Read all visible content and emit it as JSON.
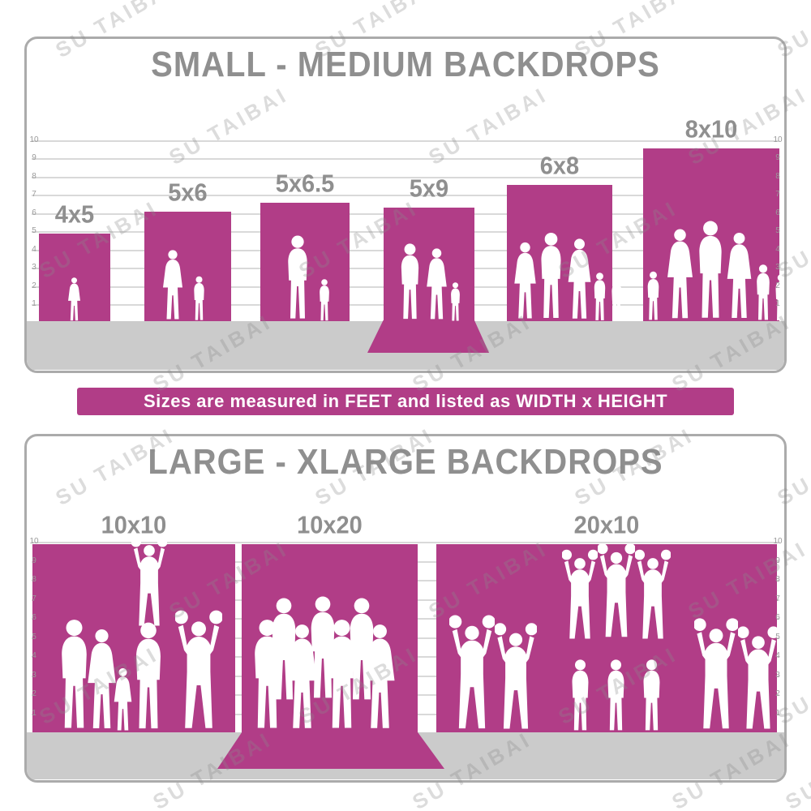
{
  "watermark": {
    "text": "SU TAIBAI"
  },
  "banner": {
    "text": "Sizes are measured in FEET and listed as WIDTH x HEIGHT"
  },
  "colors": {
    "backdrop": "#b13d87",
    "title": "#8f8f8f",
    "ground": "#cbcbcb",
    "border": "#ababab",
    "ruler_line": "#d9d9d9",
    "ruler_text": "#9a9a9a",
    "silhouette": "#ffffff"
  },
  "ruler": {
    "ticks": [
      10,
      9,
      8,
      7,
      6,
      5,
      4,
      3,
      2,
      1
    ],
    "unit": "feet"
  },
  "panels": [
    {
      "title": "SMALL - MEDIUM BACKDROPS",
      "backdrops": [
        {
          "label": "4x5",
          "width_ft": 4,
          "height_ft": 5
        },
        {
          "label": "5x6",
          "width_ft": 5,
          "height_ft": 6
        },
        {
          "label": "5x6.5",
          "width_ft": 5,
          "height_ft": 6.5
        },
        {
          "label": "5x9",
          "width_ft": 5,
          "height_ft": 9
        },
        {
          "label": "6x8",
          "width_ft": 6,
          "height_ft": 8
        },
        {
          "label": "8x10",
          "width_ft": 8,
          "height_ft": 10
        }
      ]
    },
    {
      "title": "LARGE - XLARGE BACKDROPS",
      "backdrops": [
        {
          "label": "10x10",
          "width_ft": 10,
          "height_ft": 10
        },
        {
          "label": "10x20",
          "width_ft": 10,
          "height_ft": 20
        },
        {
          "label": "20x10",
          "width_ft": 20,
          "height_ft": 10
        }
      ]
    }
  ],
  "chart_data": [
    {
      "type": "bar",
      "title": "SMALL - MEDIUM BACKDROPS",
      "categories": [
        "4x5",
        "5x6",
        "5x6.5",
        "5x9",
        "6x8",
        "8x10"
      ],
      "series": [
        {
          "name": "width_ft",
          "values": [
            4,
            5,
            5,
            5,
            6,
            8
          ]
        },
        {
          "name": "height_ft",
          "values": [
            5,
            6,
            6.5,
            9,
            8,
            10
          ]
        }
      ],
      "ylabel": "feet",
      "ylim": [
        0,
        10
      ],
      "grid": true,
      "note": "Sizes are measured in FEET and listed as WIDTH x HEIGHT"
    },
    {
      "type": "bar",
      "title": "LARGE - XLARGE BACKDROPS",
      "categories": [
        "10x10",
        "10x20",
        "20x10"
      ],
      "series": [
        {
          "name": "width_ft",
          "values": [
            10,
            10,
            20
          ]
        },
        {
          "name": "height_ft",
          "values": [
            10,
            20,
            10
          ]
        }
      ],
      "ylabel": "feet",
      "ylim": [
        0,
        10
      ],
      "grid": true
    }
  ]
}
